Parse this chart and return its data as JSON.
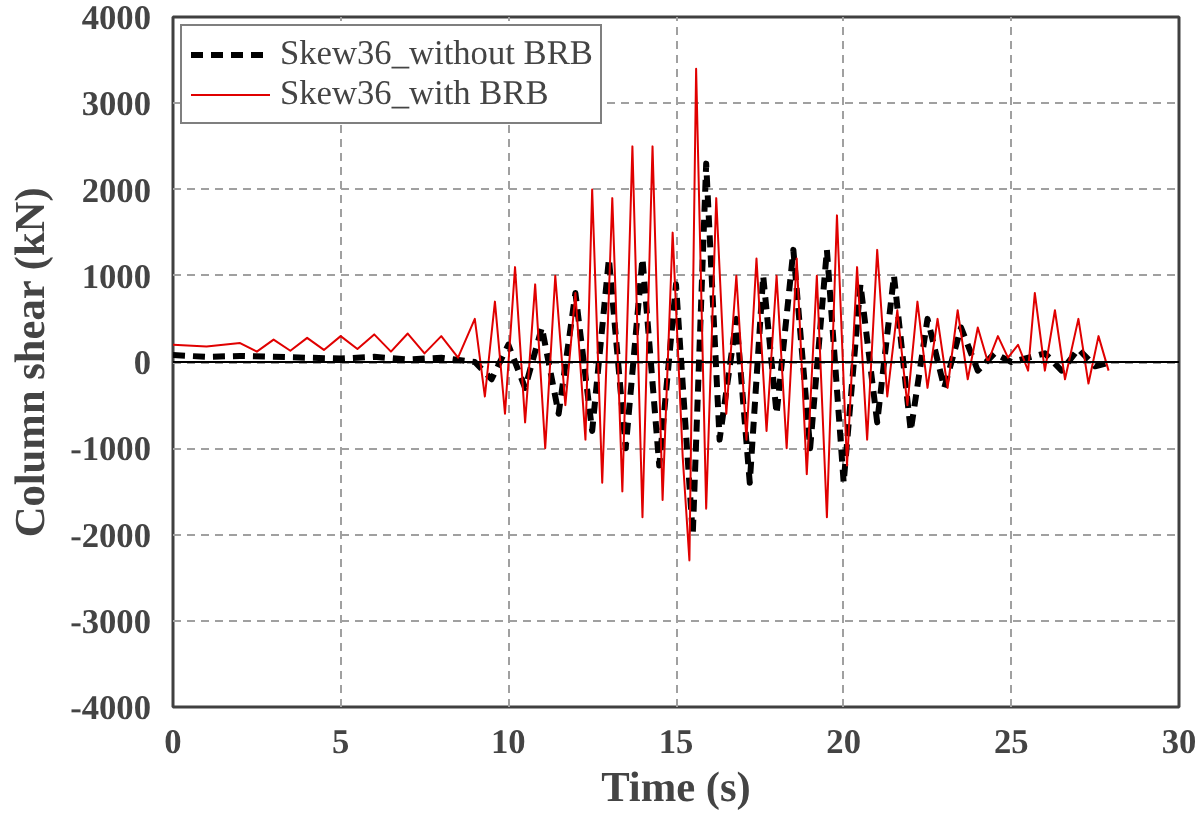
{
  "chart_data": {
    "type": "line",
    "xlabel": "Time (s)",
    "ylabel": "Column shear (kN)",
    "xlim": [
      0,
      30
    ],
    "xticks": [
      0,
      5,
      10,
      15,
      20,
      25,
      30
    ],
    "ylim": [
      -4000,
      4000
    ],
    "yticks": [
      -4000,
      -3000,
      -2000,
      -1000,
      0,
      1000,
      2000,
      3000,
      4000
    ],
    "grid": true,
    "legend": "top left",
    "ref_lines": [
      {
        "axis": "y",
        "value": 0,
        "color": "#000000"
      }
    ],
    "series": [
      {
        "name": "Skew36_without BRB",
        "color": "#000000",
        "line_style": "dashed",
        "x": [
          0,
          1,
          2,
          3,
          4,
          5,
          6,
          7,
          8,
          9,
          9.5,
          10,
          10.5,
          11,
          11.5,
          12,
          12.5,
          13,
          13.5,
          14,
          14.5,
          15,
          15.5,
          15.9,
          16.3,
          16.8,
          17.2,
          17.6,
          18,
          18.5,
          19,
          19.5,
          20,
          20.5,
          21,
          21.5,
          22,
          22.5,
          23,
          23.5,
          24,
          24.5,
          25,
          26,
          26.5,
          27,
          27.5,
          28
        ],
        "values": [
          80,
          60,
          70,
          60,
          50,
          40,
          60,
          30,
          50,
          0,
          -200,
          200,
          -300,
          400,
          -600,
          800,
          -800,
          1200,
          -1000,
          1200,
          -1200,
          900,
          -2000,
          2300,
          -900,
          500,
          -1400,
          1000,
          -600,
          1300,
          -1000,
          1300,
          -1400,
          900,
          -700,
          1000,
          -800,
          500,
          -300,
          400,
          -100,
          100,
          0,
          100,
          -100,
          150,
          -50,
          0
        ]
      },
      {
        "name": "Skew36_with BRB",
        "color": "#e00000",
        "line_style": "solid",
        "x": [
          0,
          1,
          2,
          2.5,
          3,
          3.5,
          4,
          4.5,
          5,
          5.5,
          6,
          6.5,
          7,
          7.5,
          8,
          8.5,
          9,
          9.3,
          9.6,
          9.9,
          10.2,
          10.5,
          10.8,
          11.1,
          11.4,
          11.7,
          12,
          12.3,
          12.5,
          12.8,
          13.1,
          13.4,
          13.7,
          14,
          14.3,
          14.6,
          14.9,
          15.2,
          15.4,
          15.6,
          15.9,
          16.2,
          16.5,
          16.8,
          17.1,
          17.4,
          17.7,
          18,
          18.3,
          18.6,
          18.9,
          19.2,
          19.5,
          19.8,
          20.1,
          20.4,
          20.7,
          21,
          21.3,
          21.6,
          21.9,
          22.2,
          22.5,
          22.8,
          23.1,
          23.4,
          23.7,
          24,
          24.3,
          24.6,
          24.9,
          25.2,
          25.5,
          25.7,
          26,
          26.3,
          26.6,
          27,
          27.3,
          27.6,
          27.9
        ],
        "values": [
          200,
          180,
          220,
          120,
          260,
          130,
          280,
          140,
          300,
          150,
          320,
          120,
          330,
          100,
          300,
          50,
          500,
          -400,
          700,
          -600,
          1100,
          -700,
          900,
          -1000,
          1000,
          -500,
          800,
          -900,
          2000,
          -1400,
          1900,
          -1500,
          2500,
          -1800,
          2500,
          -1600,
          1500,
          -1100,
          -2300,
          3400,
          -1700,
          1900,
          -600,
          1000,
          -900,
          1200,
          -800,
          1000,
          -1000,
          1200,
          -1300,
          1000,
          -1800,
          1700,
          -1200,
          1100,
          -900,
          1300,
          -400,
          600,
          -500,
          700,
          -300,
          500,
          -300,
          600,
          -200,
          400,
          0,
          300,
          50,
          200,
          -100,
          800,
          -100,
          600,
          -200,
          500,
          -250,
          300,
          -100
        ]
      }
    ]
  }
}
